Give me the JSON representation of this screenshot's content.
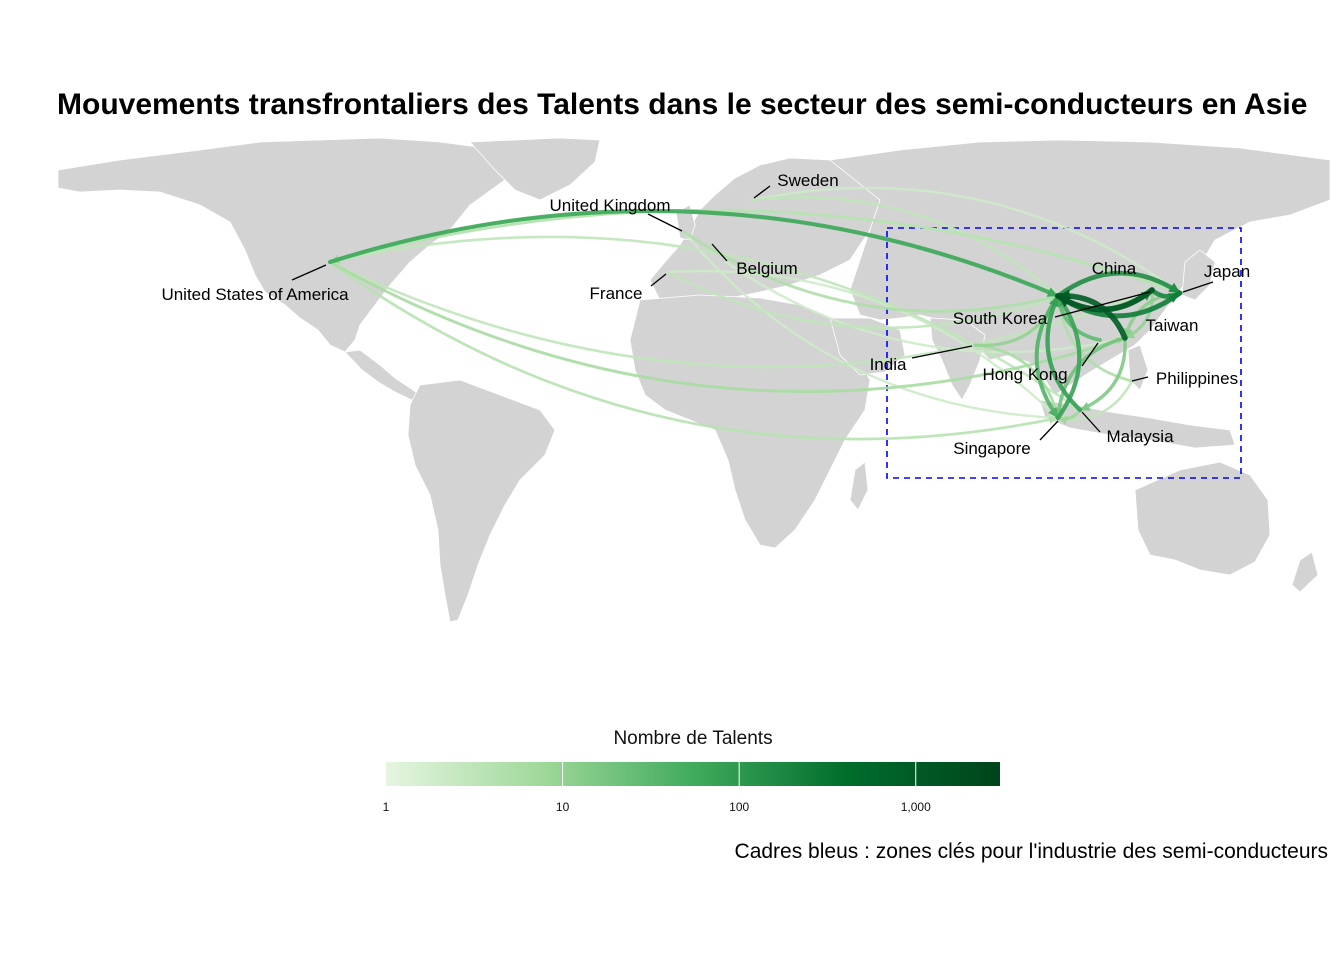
{
  "title": "Mouvements transfrontaliers des Talents dans le secteur des semi-conducteurs en Asie",
  "caption": "Cadres bleus : zones clés pour l'industrie des semi-conducteurs",
  "legend": {
    "title": "Nombre de Talents",
    "ticks": [
      "1",
      "10",
      "100",
      "1,000"
    ],
    "scale": "log10",
    "colors": [
      "#e5f5e0",
      "#a1d99b",
      "#41ab5d",
      "#006d2c",
      "#00441b"
    ]
  },
  "map": {
    "land_color": "#d3d3d3",
    "border_color": "#ffffff",
    "highlight_box_color": "#0000ff",
    "highlight_box_style": "dashed",
    "countries": [
      {
        "id": "usa",
        "label": "United States of America"
      },
      {
        "id": "uk",
        "label": "United Kingdom"
      },
      {
        "id": "sweden",
        "label": "Sweden"
      },
      {
        "id": "belgium",
        "label": "Belgium"
      },
      {
        "id": "france",
        "label": "France"
      },
      {
        "id": "china",
        "label": "China"
      },
      {
        "id": "japan",
        "label": "Japan"
      },
      {
        "id": "south_korea",
        "label": "South Korea"
      },
      {
        "id": "taiwan",
        "label": "Taiwan"
      },
      {
        "id": "india",
        "label": "India"
      },
      {
        "id": "hong_kong",
        "label": "Hong Kong"
      },
      {
        "id": "philippines",
        "label": "Philippines"
      },
      {
        "id": "malaysia",
        "label": "Malaysia"
      },
      {
        "id": "singapore",
        "label": "Singapore"
      }
    ],
    "flows": [
      {
        "from": "usa",
        "to": "china",
        "talents": 60
      },
      {
        "from": "china",
        "to": "usa",
        "talents": 8
      },
      {
        "from": "usa",
        "to": "taiwan",
        "talents": 6
      },
      {
        "from": "usa",
        "to": "singapore",
        "talents": 4
      },
      {
        "from": "usa",
        "to": "japan",
        "talents": 4
      },
      {
        "from": "japan",
        "to": "usa",
        "talents": 3
      },
      {
        "from": "usa",
        "to": "malaysia",
        "talents": 3
      },
      {
        "from": "usa",
        "to": "south_korea",
        "talents": 3
      },
      {
        "from": "uk",
        "to": "china",
        "talents": 5
      },
      {
        "from": "uk",
        "to": "singapore",
        "talents": 2
      },
      {
        "from": "sweden",
        "to": "china",
        "talents": 3
      },
      {
        "from": "sweden",
        "to": "japan",
        "talents": 2
      },
      {
        "from": "belgium",
        "to": "taiwan",
        "talents": 2
      },
      {
        "from": "france",
        "to": "china",
        "talents": 3
      },
      {
        "from": "france",
        "to": "singapore",
        "talents": 2
      },
      {
        "from": "south_korea",
        "to": "china",
        "talents": 1200
      },
      {
        "from": "taiwan",
        "to": "china",
        "talents": 900
      },
      {
        "from": "japan",
        "to": "china",
        "talents": 250
      },
      {
        "from": "south_korea",
        "to": "japan",
        "talents": 180
      },
      {
        "from": "china",
        "to": "japan",
        "talents": 150
      },
      {
        "from": "china",
        "to": "south_korea",
        "talents": 120
      },
      {
        "from": "malaysia",
        "to": "china",
        "talents": 80
      },
      {
        "from": "singapore",
        "to": "china",
        "talents": 70
      },
      {
        "from": "china",
        "to": "singapore",
        "talents": 40
      },
      {
        "from": "hong_kong",
        "to": "china",
        "talents": 30
      },
      {
        "from": "taiwan",
        "to": "singapore",
        "talents": 20
      },
      {
        "from": "taiwan",
        "to": "malaysia",
        "talents": 15
      },
      {
        "from": "india",
        "to": "china",
        "talents": 10
      },
      {
        "from": "india",
        "to": "singapore",
        "talents": 6
      },
      {
        "from": "philippines",
        "to": "china",
        "talents": 5
      },
      {
        "from": "philippines",
        "to": "singapore",
        "talents": 3
      },
      {
        "from": "japan",
        "to": "taiwan",
        "talents": 12
      },
      {
        "from": "south_korea",
        "to": "taiwan",
        "talents": 10
      },
      {
        "from": "malaysia",
        "to": "singapore",
        "talents": 8
      }
    ]
  }
}
